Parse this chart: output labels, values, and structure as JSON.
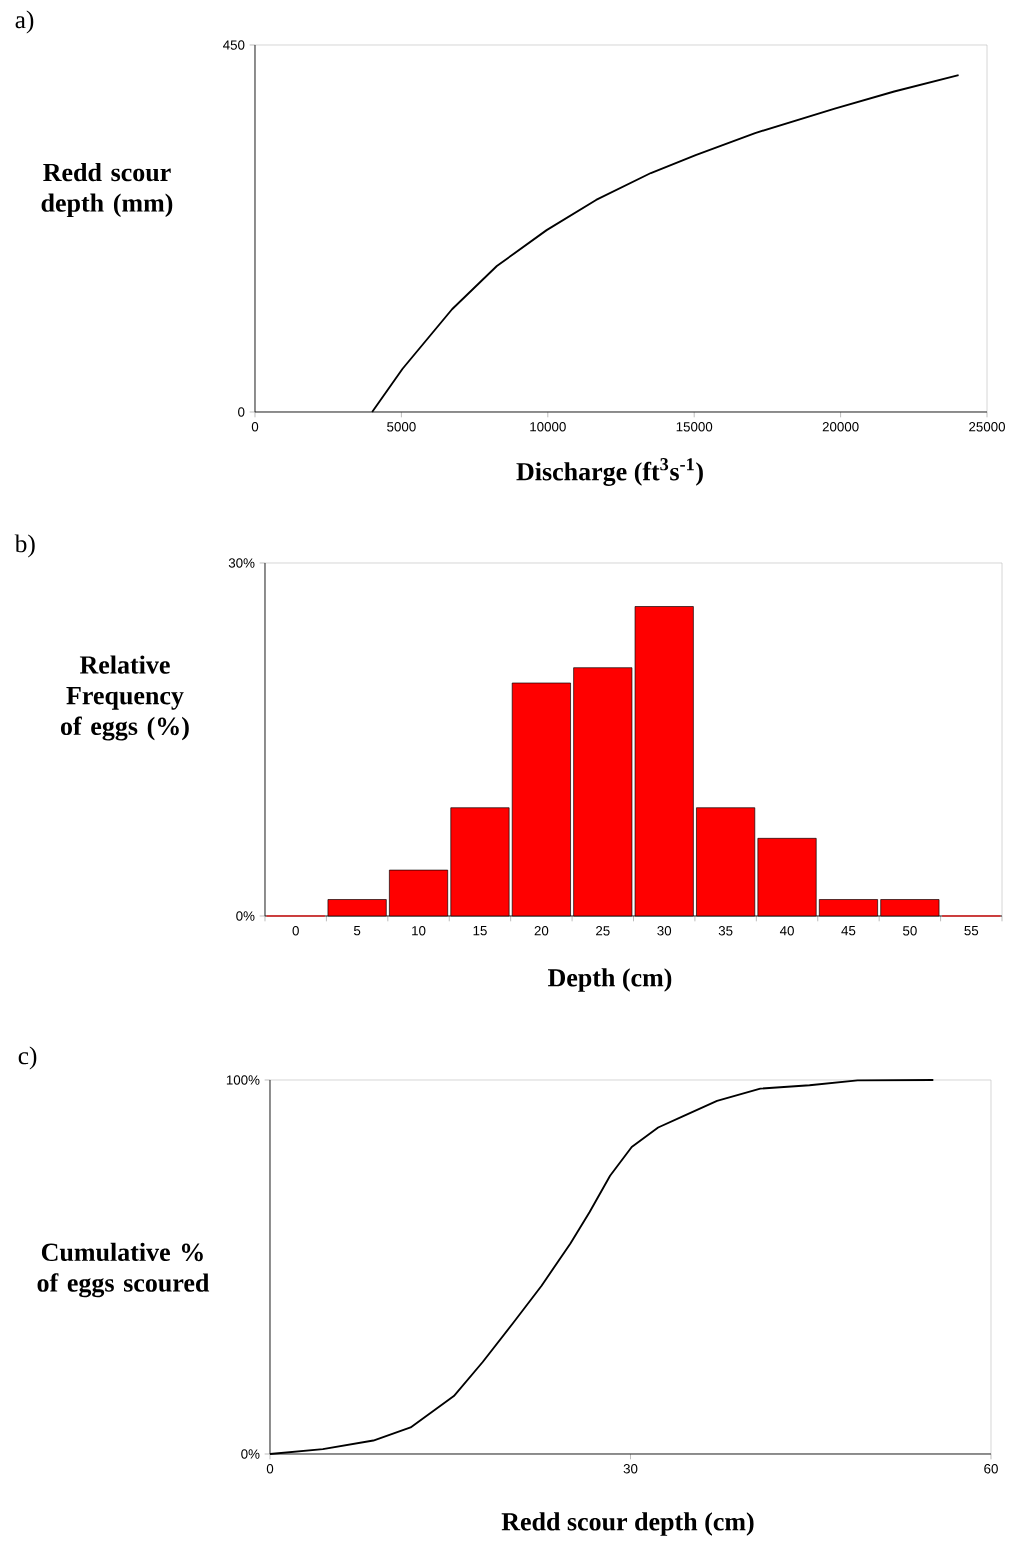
{
  "chart_data": [
    {
      "type": "line",
      "annotations": [
        "a)"
      ],
      "xlabel": "Discharge (ft$^{3}$s$^{-1}$)",
      "ylabel": "Redd scour depth (mm)",
      "color": "#000000",
      "x": [
        4000,
        5040,
        6730,
        8260,
        9960,
        11650,
        13520,
        15050,
        17080,
        19800,
        21830,
        24030
      ],
      "values": [
        0,
        53,
        126,
        179,
        223,
        260,
        293,
        315,
        342,
        372,
        393,
        413
      ],
      "xlim": [
        0,
        25000
      ],
      "ylim": [
        0,
        450
      ],
      "xticks": [
        0,
        5000,
        10000,
        15000,
        20000,
        25000
      ],
      "yticks": [
        0,
        450
      ]
    },
    {
      "type": "bar",
      "annotations": [
        "b)"
      ],
      "xlabel": "Depth (cm)",
      "ylabel": "Relative Frequency of eggs (%)",
      "color": "#ff0000",
      "categories": [
        "0",
        "5",
        "10",
        "15",
        "20",
        "25",
        "30",
        "35",
        "40",
        "45",
        "50",
        "55"
      ],
      "values": [
        0,
        1.4,
        3.9,
        9.2,
        19.8,
        21.1,
        26.3,
        9.2,
        6.6,
        1.4,
        1.4,
        0
      ],
      "ylim": [
        0,
        30
      ],
      "yticks": [
        {
          "value": 0,
          "label": "0%"
        },
        {
          "value": 30,
          "label": "30%"
        }
      ]
    },
    {
      "type": "line",
      "annotations": [
        "c)"
      ],
      "xlabel": "Redd scour depth (cm)",
      "ylabel": "Cumulative % of eggs scoured",
      "color": "#000000",
      "x": [
        0,
        4.4,
        8.6,
        11.7,
        15.3,
        17.7,
        20.2,
        22.6,
        25.0,
        26.6,
        28.3,
        30.1,
        32.3,
        34.3,
        37.2,
        40.8,
        44.9,
        48.9,
        55.2
      ],
      "values": [
        0,
        1.3,
        3.6,
        7.1,
        15.5,
        24.6,
        34.9,
        45.0,
        56.3,
        64.7,
        74.4,
        82.1,
        87.3,
        90.2,
        94.4,
        97.7,
        98.6,
        99.9,
        100
      ],
      "xlim": [
        0,
        60
      ],
      "ylim": [
        0,
        100
      ],
      "xticks": [
        0,
        30,
        60
      ],
      "yticks": [
        {
          "value": 0,
          "label": "0%"
        },
        {
          "value": 100,
          "label": "100%"
        }
      ]
    }
  ]
}
